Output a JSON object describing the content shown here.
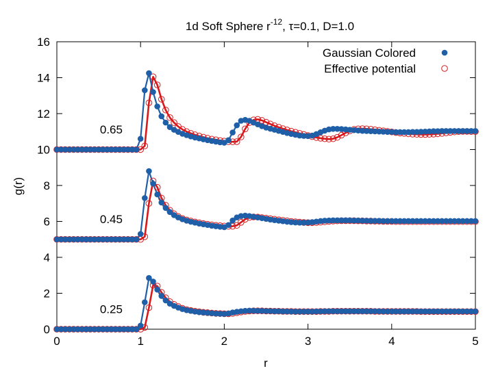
{
  "chart_data": {
    "type": "scatter",
    "title_main": "1d Soft Sphere r",
    "title_sup": "-12",
    "title_rest": ", τ=0.1, D=1.0",
    "xlabel": "r",
    "ylabel": "g(r)",
    "xlim": [
      0,
      5
    ],
    "ylim": [
      0,
      16
    ],
    "xticks": [
      "0",
      "1",
      "2",
      "3",
      "4",
      "5"
    ],
    "yticks": [
      "0",
      "2",
      "4",
      "6",
      "8",
      "10",
      "12",
      "14",
      "16"
    ],
    "legend_position": "top-right",
    "grid": false,
    "x": [
      0,
      0.05,
      0.1,
      0.15,
      0.2,
      0.25,
      0.3,
      0.35,
      0.4,
      0.45,
      0.5,
      0.55,
      0.6,
      0.65,
      0.7,
      0.75,
      0.8,
      0.85,
      0.9,
      0.95,
      1.0,
      1.05,
      1.1,
      1.15,
      1.2,
      1.25,
      1.3,
      1.35,
      1.4,
      1.45,
      1.5,
      1.55,
      1.6,
      1.65,
      1.7,
      1.75,
      1.8,
      1.85,
      1.9,
      1.95,
      2.0,
      2.05,
      2.1,
      2.15,
      2.2,
      2.25,
      2.3,
      2.35,
      2.4,
      2.45,
      2.5,
      2.55,
      2.6,
      2.65,
      2.7,
      2.75,
      2.8,
      2.85,
      2.9,
      2.95,
      3.0,
      3.05,
      3.1,
      3.15,
      3.2,
      3.25,
      3.3,
      3.35,
      3.4,
      3.45,
      3.5,
      3.55,
      3.6,
      3.65,
      3.7,
      3.75,
      3.8,
      3.85,
      3.9,
      3.95,
      4.0,
      4.05,
      4.1,
      4.15,
      4.2,
      4.25,
      4.3,
      4.35,
      4.4,
      4.45,
      4.5,
      4.55,
      4.6,
      4.65,
      4.7,
      4.75,
      4.8,
      4.85,
      4.9,
      4.95,
      5.0
    ],
    "series": [
      {
        "name": "Gaussian Colored",
        "color": "#1f5fa8",
        "marker": "filled-circle",
        "curves": [
          {
            "label": "0.65",
            "y": [
              10,
              10,
              10,
              10,
              10,
              10,
              10,
              10,
              10,
              10,
              10,
              10,
              10,
              10,
              10,
              10,
              10,
              10,
              10,
              10,
              10.6,
              13.3,
              14.25,
              13.2,
              12.4,
              11.85,
              11.5,
              11.25,
              11.1,
              10.98,
              10.88,
              10.8,
              10.73,
              10.67,
              10.62,
              10.57,
              10.52,
              10.48,
              10.44,
              10.4,
              10.38,
              10.52,
              10.95,
              11.35,
              11.6,
              11.65,
              11.6,
              11.5,
              11.4,
              11.3,
              11.22,
              11.16,
              11.1,
              11.04,
              10.98,
              10.92,
              10.87,
              10.82,
              10.78,
              10.76,
              10.75,
              10.78,
              10.86,
              10.96,
              11.05,
              11.12,
              11.15,
              11.15,
              11.14,
              11.12,
              11.1,
              11.08,
              11.06,
              11.04,
              11.03,
              11.02,
              11.01,
              11.0,
              10.99,
              10.98,
              10.98,
              10.97,
              10.97,
              10.97,
              10.97,
              10.98,
              10.98,
              10.99,
              11.0,
              11.01,
              11.02,
              11.02,
              11.03,
              11.03,
              11.03,
              11.03,
              11.03,
              11.03,
              11.03,
              11.03,
              11.03
            ]
          },
          {
            "label": "0.45",
            "y": [
              5,
              5,
              5,
              5,
              5,
              5,
              5,
              5,
              5,
              5,
              5,
              5,
              5,
              5,
              5,
              5,
              5,
              5,
              5,
              5,
              5.3,
              7.3,
              8.8,
              8.1,
              7.5,
              7.05,
              6.75,
              6.52,
              6.35,
              6.22,
              6.12,
              6.04,
              5.98,
              5.93,
              5.88,
              5.84,
              5.8,
              5.76,
              5.73,
              5.7,
              5.68,
              5.8,
              6.05,
              6.22,
              6.3,
              6.32,
              6.3,
              6.26,
              6.22,
              6.18,
              6.14,
              6.1,
              6.07,
              6.04,
              6.01,
              5.98,
              5.96,
              5.94,
              5.93,
              5.93,
              5.94,
              5.96,
              5.99,
              6.02,
              6.04,
              6.05,
              6.06,
              6.06,
              6.06,
              6.06,
              6.06,
              6.05,
              6.05,
              6.04,
              6.04,
              6.03,
              6.03,
              6.03,
              6.02,
              6.02,
              6.02,
              6.02,
              6.02,
              6.02,
              6.02,
              6.02,
              6.02,
              6.02,
              6.02,
              6.02,
              6.02,
              6.02,
              6.02,
              6.02,
              6.02,
              6.02,
              6.02,
              6.02,
              6.02,
              6.02,
              6.02
            ]
          },
          {
            "label": "0.25",
            "y": [
              0,
              0,
              0,
              0,
              0,
              0,
              0,
              0,
              0,
              0,
              0,
              0,
              0,
              0,
              0,
              0,
              0,
              0,
              0,
              0,
              0.2,
              1.5,
              2.85,
              2.65,
              2.2,
              1.85,
              1.6,
              1.42,
              1.3,
              1.2,
              1.12,
              1.06,
              1.02,
              0.98,
              0.95,
              0.93,
              0.91,
              0.89,
              0.87,
              0.86,
              0.85,
              0.88,
              0.93,
              0.97,
              1.0,
              1.02,
              1.03,
              1.03,
              1.02,
              1.02,
              1.01,
              1.01,
              1.0,
              1.0,
              0.99,
              0.99,
              0.98,
              0.98,
              0.98,
              0.98,
              0.98,
              0.98,
              0.99,
              0.99,
              1.0,
              1.0,
              1.0,
              1.0,
              1.0,
              1.0,
              1.0,
              1.0,
              1.0,
              1.0,
              1.0,
              1.0,
              1.0,
              1.0,
              0.99,
              0.99,
              0.99,
              0.99,
              0.99,
              0.99,
              0.99,
              0.99,
              0.99,
              0.99,
              0.99,
              0.99,
              0.99,
              0.99,
              0.99,
              0.99,
              0.99,
              0.99,
              0.99,
              0.99,
              0.99,
              0.99,
              0.99
            ]
          }
        ]
      },
      {
        "name": "Effective potential",
        "color": "#d7191c",
        "marker": "open-circle",
        "curves": [
          {
            "label": "0.65",
            "y": [
              10,
              10,
              10,
              10,
              10,
              10,
              10,
              10,
              10,
              10,
              10,
              10,
              10,
              10,
              10,
              10,
              10,
              10,
              10,
              10,
              10,
              10.2,
              12.6,
              14.05,
              13.6,
              12.8,
              12.2,
              11.78,
              11.5,
              11.28,
              11.12,
              11.0,
              10.9,
              10.82,
              10.75,
              10.69,
              10.63,
              10.58,
              10.54,
              10.5,
              10.47,
              10.44,
              10.43,
              10.44,
              10.7,
              11.15,
              11.5,
              11.65,
              11.68,
              11.62,
              11.52,
              11.42,
              11.32,
              11.24,
              11.16,
              11.09,
              11.02,
              10.96,
              10.9,
              10.84,
              10.78,
              10.72,
              10.67,
              10.63,
              10.6,
              10.58,
              10.6,
              10.68,
              10.8,
              10.93,
              11.04,
              11.12,
              11.15,
              11.16,
              11.15,
              11.13,
              11.1,
              11.07,
              11.04,
              11.01,
              10.98,
              10.95,
              10.92,
              10.9,
              10.88,
              10.86,
              10.85,
              10.84,
              10.84,
              10.85,
              10.86,
              10.88,
              10.9,
              10.93,
              10.96,
              10.98,
              11.0,
              11.01,
              11.01,
              11.0,
              11.0
            ]
          },
          {
            "label": "0.45",
            "y": [
              5,
              5,
              5,
              5,
              5,
              5,
              5,
              5,
              5,
              5,
              5,
              5,
              5,
              5,
              5,
              5,
              5,
              5,
              5,
              5,
              5,
              5.15,
              7.0,
              8.25,
              7.9,
              7.3,
              6.9,
              6.62,
              6.42,
              6.27,
              6.16,
              6.08,
              6.02,
              5.97,
              5.92,
              5.88,
              5.84,
              5.81,
              5.78,
              5.76,
              5.74,
              5.73,
              5.73,
              5.78,
              5.95,
              6.12,
              6.22,
              6.25,
              6.24,
              6.21,
              6.18,
              6.15,
              6.12,
              6.09,
              6.06,
              6.03,
              6.0,
              5.98,
              5.96,
              5.94,
              5.93,
              5.93,
              5.94,
              5.96,
              5.98,
              6.0,
              6.02,
              6.03,
              6.04,
              6.04,
              6.04,
              6.04,
              6.03,
              6.03,
              6.02,
              6.02,
              6.01,
              6.01,
              6.0,
              6.0,
              6.0,
              5.99,
              5.99,
              5.99,
              5.99,
              5.99,
              5.99,
              5.99,
              5.99,
              5.99,
              5.99,
              5.99,
              5.99,
              5.99,
              5.99,
              5.99,
              5.99,
              5.99,
              5.99,
              5.99,
              5.99
            ]
          },
          {
            "label": "0.25",
            "y": [
              0,
              0,
              0,
              0,
              0,
              0,
              0,
              0,
              0,
              0,
              0,
              0,
              0,
              0,
              0,
              0,
              0,
              0,
              0,
              0,
              0,
              0.1,
              1.2,
              2.45,
              2.4,
              2.05,
              1.75,
              1.53,
              1.38,
              1.26,
              1.16,
              1.09,
              1.04,
              1.0,
              0.97,
              0.94,
              0.92,
              0.9,
              0.88,
              0.87,
              0.86,
              0.86,
              0.88,
              0.92,
              0.96,
              0.99,
              1.01,
              1.02,
              1.02,
              1.02,
              1.01,
              1.01,
              1.0,
              1.0,
              0.99,
              0.99,
              0.99,
              0.98,
              0.98,
              0.98,
              0.98,
              0.98,
              0.98,
              0.99,
              0.99,
              0.99,
              1.0,
              1.0,
              1.0,
              1.0,
              1.0,
              1.0,
              1.0,
              1.0,
              1.0,
              1.0,
              0.99,
              0.99,
              0.99,
              0.99,
              0.99,
              0.99,
              0.99,
              0.99,
              0.99,
              0.99,
              0.99,
              0.98,
              0.98,
              0.98,
              0.98,
              0.98,
              0.98,
              0.98,
              0.98,
              0.98,
              0.98,
              0.98,
              0.98,
              0.98,
              0.98
            ]
          }
        ]
      }
    ],
    "annotations": [
      {
        "text": "0.65",
        "x": 0.65,
        "y": 10.9
      },
      {
        "text": "0.45",
        "x": 0.65,
        "y": 5.9
      },
      {
        "text": "0.25",
        "x": 0.65,
        "y": 0.9
      }
    ]
  }
}
